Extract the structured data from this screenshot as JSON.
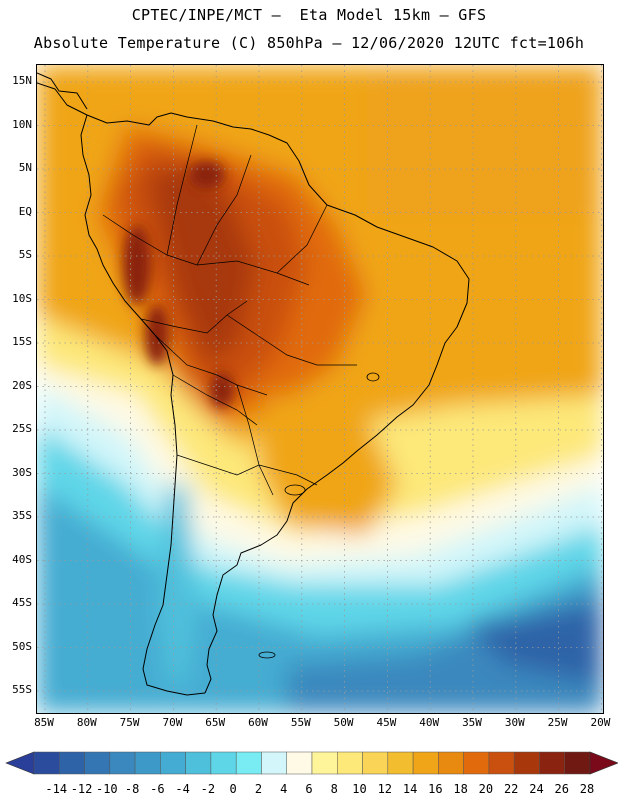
{
  "header": {
    "line1": "CPTEC/INPE/MCT –  Eta Model 15km – GFS",
    "line2": "Absolute Temperature (C) 850hPa – 12/06/2020 12UTC fct=106h"
  },
  "map": {
    "region": "South America",
    "variable": "Absolute Temperature (C)",
    "level": "850hPa",
    "lat_labels": [
      "15N",
      "10N",
      "5N",
      "EQ",
      "5S",
      "10S",
      "15S",
      "20S",
      "25S",
      "30S",
      "35S",
      "40S",
      "45S",
      "50S",
      "55S"
    ],
    "lon_labels": [
      "85W",
      "80W",
      "75W",
      "70W",
      "65W",
      "60W",
      "55W",
      "50W",
      "45W",
      "40W",
      "35W",
      "30W",
      "25W",
      "20W"
    ]
  },
  "colorbar": {
    "labels": [
      "-14",
      "-12",
      "-10",
      "-8",
      "-6",
      "-4",
      "-2",
      "0",
      "2",
      "4",
      "6",
      "8",
      "10",
      "12",
      "14",
      "16",
      "18",
      "20",
      "22",
      "24",
      "26",
      "28"
    ],
    "under_color": "#2a3f9a",
    "over_color": "#7a0a1a",
    "colors": [
      "#2b4c9c",
      "#2f63a8",
      "#3476b4",
      "#3a88be",
      "#3d9ac8",
      "#44acd2",
      "#4fc0dc",
      "#5fd6e8",
      "#78ecf2",
      "#d2f6fa",
      "#fefae6",
      "#fef49a",
      "#fde87a",
      "#f9d457",
      "#f3bd30",
      "#f0a518",
      "#e98a10",
      "#e16a0c",
      "#c9500e",
      "#a8380c",
      "#8a2410",
      "#701812"
    ]
  }
}
